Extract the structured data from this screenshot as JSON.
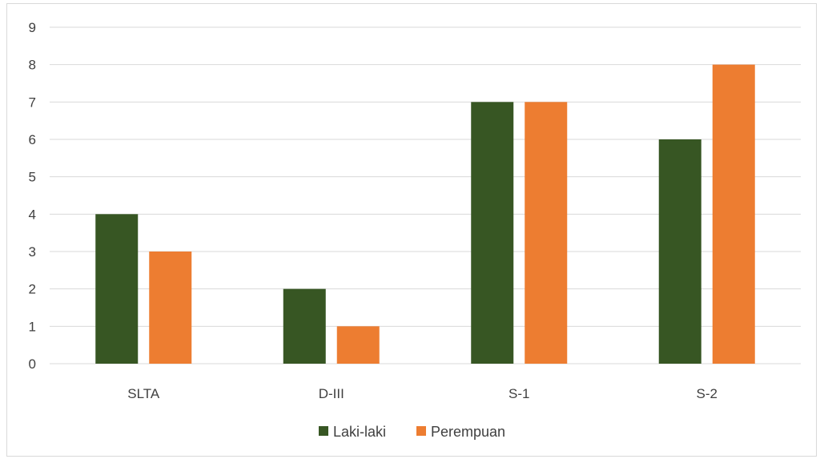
{
  "chart_data": {
    "type": "bar",
    "title": "",
    "xlabel": "",
    "ylabel": "",
    "categories": [
      "SLTA",
      "D-III",
      "S-1",
      "S-2"
    ],
    "series": [
      {
        "name": "Laki-laki",
        "values": [
          4,
          2,
          7,
          6
        ],
        "color": "#375623"
      },
      {
        "name": "Perempuan",
        "values": [
          3,
          1,
          7,
          8
        ],
        "color": "#ED7D31"
      }
    ],
    "ylim": [
      0,
      9
    ],
    "yticks": [
      "0",
      "1",
      "2",
      "3",
      "4",
      "5",
      "6",
      "7",
      "8",
      "9"
    ],
    "grid": true,
    "legend_position": "bottom"
  }
}
